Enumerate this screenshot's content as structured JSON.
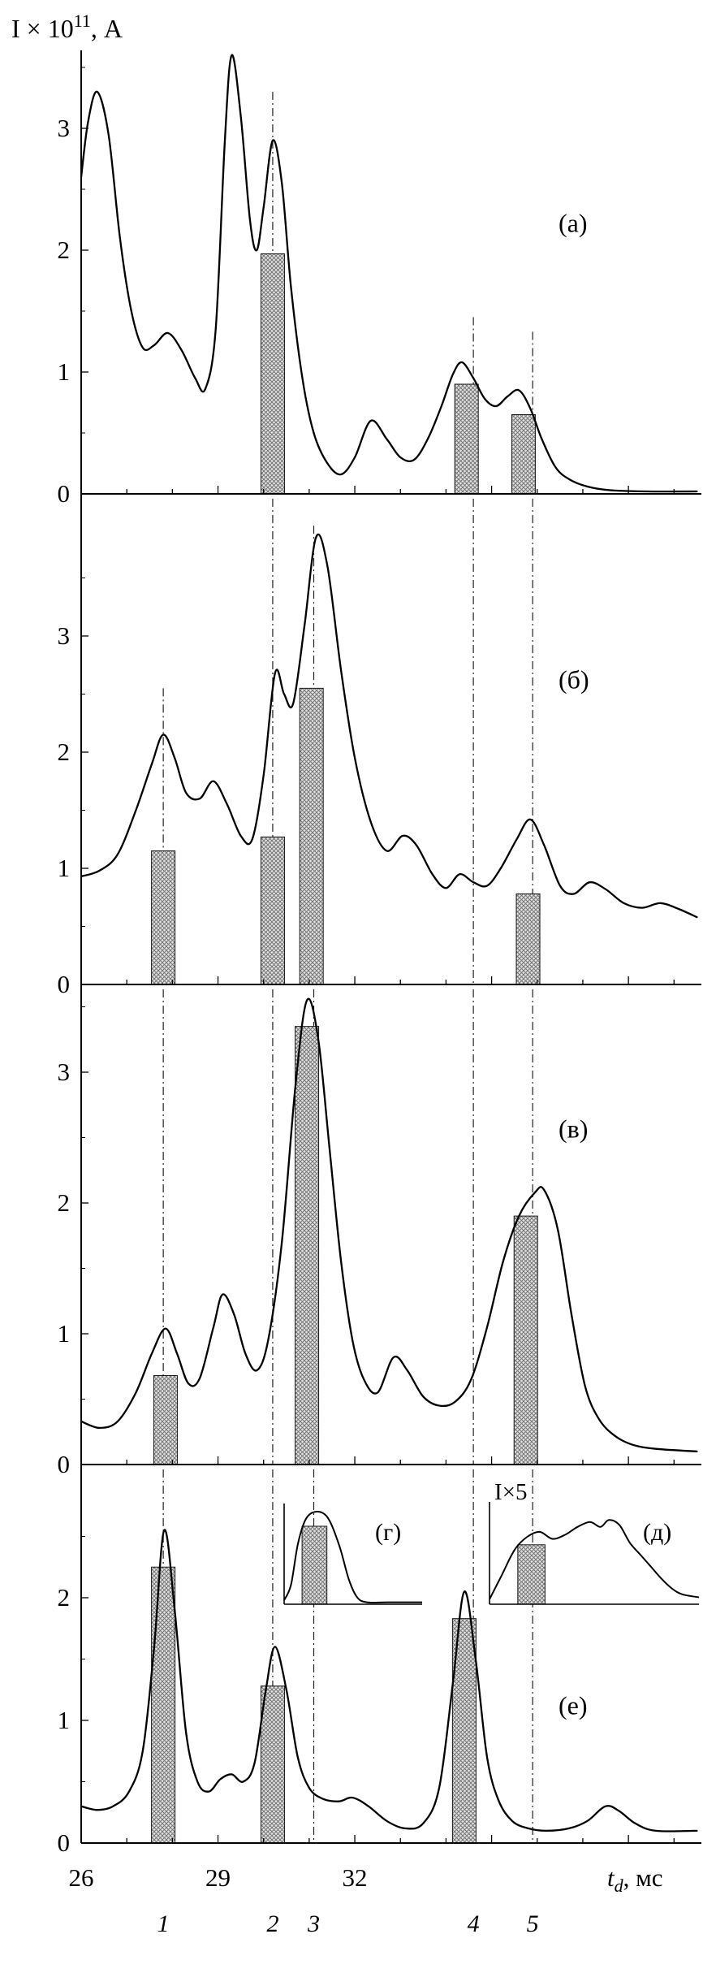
{
  "figure": {
    "y_axis_title": {
      "base": "I × 10",
      "sup": "11",
      "rest": ", А"
    },
    "x_axis_title": {
      "var": "t",
      "sub": "d",
      "rest": ", мс"
    }
  },
  "chart_data": {
    "type": "line",
    "x_range": [
      26,
      39.6
    ],
    "x_major_ticks": [
      26,
      29,
      32,
      35,
      38
    ],
    "x_tick_labels": [
      {
        "value": 26,
        "text": "26"
      },
      {
        "value": 29,
        "text": "29"
      },
      {
        "value": 32,
        "text": "32"
      }
    ],
    "guide_lines_x": [
      27.8,
      30.2,
      31.1,
      34.6,
      35.9
    ],
    "guide_labels": [
      "1",
      "2",
      "3",
      "4",
      "5"
    ],
    "panels": [
      {
        "id": "a",
        "label": "(а)",
        "y_ticks": [
          0,
          1,
          2,
          3
        ],
        "curve": [
          [
            26.0,
            2.6
          ],
          [
            26.15,
            3.05
          ],
          [
            26.35,
            3.3
          ],
          [
            26.6,
            2.95
          ],
          [
            26.85,
            2.1
          ],
          [
            27.1,
            1.5
          ],
          [
            27.35,
            1.2
          ],
          [
            27.6,
            1.22
          ],
          [
            27.9,
            1.32
          ],
          [
            28.2,
            1.18
          ],
          [
            28.5,
            0.95
          ],
          [
            28.72,
            0.86
          ],
          [
            28.95,
            1.35
          ],
          [
            29.15,
            2.9
          ],
          [
            29.3,
            3.6
          ],
          [
            29.5,
            3.1
          ],
          [
            29.7,
            2.25
          ],
          [
            29.85,
            2.0
          ],
          [
            30.0,
            2.35
          ],
          [
            30.2,
            2.9
          ],
          [
            30.4,
            2.55
          ],
          [
            30.6,
            1.7
          ],
          [
            30.85,
            0.95
          ],
          [
            31.1,
            0.5
          ],
          [
            31.4,
            0.25
          ],
          [
            31.7,
            0.16
          ],
          [
            32.0,
            0.3
          ],
          [
            32.35,
            0.6
          ],
          [
            32.7,
            0.45
          ],
          [
            33.0,
            0.3
          ],
          [
            33.3,
            0.28
          ],
          [
            33.6,
            0.45
          ],
          [
            33.9,
            0.72
          ],
          [
            34.15,
            0.98
          ],
          [
            34.35,
            1.08
          ],
          [
            34.6,
            0.95
          ],
          [
            34.85,
            0.78
          ],
          [
            35.1,
            0.72
          ],
          [
            35.35,
            0.8
          ],
          [
            35.6,
            0.85
          ],
          [
            35.85,
            0.7
          ],
          [
            36.1,
            0.45
          ],
          [
            36.4,
            0.22
          ],
          [
            36.7,
            0.12
          ],
          [
            37.1,
            0.06
          ],
          [
            37.6,
            0.03
          ],
          [
            38.4,
            0.02
          ],
          [
            39.5,
            0.02
          ]
        ],
        "bars": [
          {
            "x": 30.2,
            "h": 1.97
          },
          {
            "x": 34.45,
            "h": 0.9
          },
          {
            "x": 35.7,
            "h": 0.65
          }
        ],
        "guides": [
          {
            "x": 30.2,
            "from": 3.3
          },
          {
            "x": 34.6,
            "from": 1.45
          },
          {
            "x": 35.9,
            "from": 1.33
          }
        ]
      },
      {
        "id": "b",
        "label": "(б)",
        "y_ticks": [
          0,
          1,
          2,
          3
        ],
        "curve": [
          [
            26.0,
            0.93
          ],
          [
            26.4,
            0.98
          ],
          [
            26.8,
            1.12
          ],
          [
            27.2,
            1.5
          ],
          [
            27.55,
            1.9
          ],
          [
            27.8,
            2.15
          ],
          [
            28.05,
            1.95
          ],
          [
            28.3,
            1.65
          ],
          [
            28.6,
            1.6
          ],
          [
            28.9,
            1.75
          ],
          [
            29.2,
            1.55
          ],
          [
            29.5,
            1.28
          ],
          [
            29.75,
            1.25
          ],
          [
            30.0,
            1.8
          ],
          [
            30.25,
            2.68
          ],
          [
            30.45,
            2.5
          ],
          [
            30.65,
            2.42
          ],
          [
            30.9,
            3.1
          ],
          [
            31.15,
            3.85
          ],
          [
            31.4,
            3.6
          ],
          [
            31.7,
            2.7
          ],
          [
            32.0,
            1.95
          ],
          [
            32.35,
            1.4
          ],
          [
            32.7,
            1.15
          ],
          [
            33.05,
            1.28
          ],
          [
            33.35,
            1.2
          ],
          [
            33.7,
            0.95
          ],
          [
            34.0,
            0.83
          ],
          [
            34.3,
            0.95
          ],
          [
            34.6,
            0.88
          ],
          [
            34.9,
            0.85
          ],
          [
            35.2,
            1.0
          ],
          [
            35.55,
            1.25
          ],
          [
            35.85,
            1.42
          ],
          [
            36.15,
            1.2
          ],
          [
            36.5,
            0.85
          ],
          [
            36.8,
            0.78
          ],
          [
            37.15,
            0.88
          ],
          [
            37.5,
            0.82
          ],
          [
            37.9,
            0.7
          ],
          [
            38.3,
            0.66
          ],
          [
            38.7,
            0.7
          ],
          [
            39.1,
            0.65
          ],
          [
            39.5,
            0.58
          ]
        ],
        "bars": [
          {
            "x": 27.8,
            "h": 1.15
          },
          {
            "x": 30.2,
            "h": 1.27
          },
          {
            "x": 31.05,
            "h": 2.55
          },
          {
            "x": 35.8,
            "h": 0.78
          }
        ],
        "guides": [
          {
            "x": 27.8,
            "from": 2.55
          },
          {
            "x": 30.2,
            "from": "top"
          },
          {
            "x": 31.1,
            "from": 3.95
          },
          {
            "x": 34.6,
            "from": "top"
          },
          {
            "x": 35.9,
            "from": "top"
          }
        ]
      },
      {
        "id": "v",
        "label": "(в)",
        "y_ticks": [
          0,
          1,
          2,
          3
        ],
        "curve": [
          [
            26.0,
            0.33
          ],
          [
            26.4,
            0.28
          ],
          [
            26.8,
            0.33
          ],
          [
            27.2,
            0.55
          ],
          [
            27.55,
            0.85
          ],
          [
            27.85,
            1.04
          ],
          [
            28.1,
            0.85
          ],
          [
            28.35,
            0.62
          ],
          [
            28.6,
            0.66
          ],
          [
            28.9,
            1.05
          ],
          [
            29.1,
            1.3
          ],
          [
            29.35,
            1.15
          ],
          [
            29.6,
            0.85
          ],
          [
            29.85,
            0.72
          ],
          [
            30.1,
            0.95
          ],
          [
            30.4,
            1.7
          ],
          [
            30.7,
            2.9
          ],
          [
            30.95,
            3.55
          ],
          [
            31.2,
            3.25
          ],
          [
            31.45,
            2.4
          ],
          [
            31.7,
            1.55
          ],
          [
            31.95,
            0.95
          ],
          [
            32.2,
            0.65
          ],
          [
            32.5,
            0.55
          ],
          [
            32.85,
            0.82
          ],
          [
            33.15,
            0.72
          ],
          [
            33.5,
            0.52
          ],
          [
            33.85,
            0.45
          ],
          [
            34.2,
            0.48
          ],
          [
            34.55,
            0.65
          ],
          [
            34.9,
            1.05
          ],
          [
            35.25,
            1.55
          ],
          [
            35.6,
            1.9
          ],
          [
            35.95,
            2.08
          ],
          [
            36.15,
            2.1
          ],
          [
            36.45,
            1.8
          ],
          [
            36.75,
            1.15
          ],
          [
            37.05,
            0.6
          ],
          [
            37.35,
            0.35
          ],
          [
            37.7,
            0.22
          ],
          [
            38.1,
            0.15
          ],
          [
            38.6,
            0.12
          ],
          [
            39.5,
            0.1
          ]
        ],
        "bars": [
          {
            "x": 27.85,
            "h": 0.68
          },
          {
            "x": 30.95,
            "h": 3.35
          },
          {
            "x": 35.75,
            "h": 1.9
          }
        ],
        "guides": [
          {
            "x": 27.8,
            "from": "top"
          },
          {
            "x": 30.2,
            "from": "top"
          },
          {
            "x": 31.1,
            "from": "top"
          },
          {
            "x": 34.6,
            "from": "top"
          },
          {
            "x": 35.9,
            "from": "top"
          }
        ]
      },
      {
        "id": "e",
        "label": "(е)",
        "y_ticks": [
          0,
          1,
          2
        ],
        "curve": [
          [
            26.0,
            0.3
          ],
          [
            26.35,
            0.27
          ],
          [
            26.7,
            0.3
          ],
          [
            27.05,
            0.42
          ],
          [
            27.35,
            0.75
          ],
          [
            27.6,
            1.6
          ],
          [
            27.82,
            2.55
          ],
          [
            28.05,
            1.9
          ],
          [
            28.3,
            0.9
          ],
          [
            28.55,
            0.5
          ],
          [
            28.8,
            0.42
          ],
          [
            29.05,
            0.52
          ],
          [
            29.3,
            0.56
          ],
          [
            29.55,
            0.5
          ],
          [
            29.8,
            0.65
          ],
          [
            30.05,
            1.25
          ],
          [
            30.25,
            1.6
          ],
          [
            30.5,
            1.25
          ],
          [
            30.75,
            0.7
          ],
          [
            31.0,
            0.45
          ],
          [
            31.3,
            0.36
          ],
          [
            31.65,
            0.34
          ],
          [
            31.95,
            0.37
          ],
          [
            32.3,
            0.3
          ],
          [
            32.7,
            0.18
          ],
          [
            33.1,
            0.12
          ],
          [
            33.5,
            0.16
          ],
          [
            33.85,
            0.45
          ],
          [
            34.15,
            1.3
          ],
          [
            34.4,
            2.05
          ],
          [
            34.65,
            1.5
          ],
          [
            34.9,
            0.7
          ],
          [
            35.15,
            0.35
          ],
          [
            35.45,
            0.18
          ],
          [
            35.8,
            0.12
          ],
          [
            36.2,
            0.1
          ],
          [
            36.7,
            0.12
          ],
          [
            37.1,
            0.18
          ],
          [
            37.5,
            0.3
          ],
          [
            37.8,
            0.26
          ],
          [
            38.15,
            0.16
          ],
          [
            38.6,
            0.1
          ],
          [
            39.5,
            0.1
          ]
        ],
        "bars": [
          {
            "x": 27.8,
            "h": 2.25
          },
          {
            "x": 30.2,
            "h": 1.28
          },
          {
            "x": 34.4,
            "h": 1.83
          }
        ],
        "guides": [
          {
            "x": 27.8,
            "from": "top"
          },
          {
            "x": 30.2,
            "from": "top"
          },
          {
            "x": 31.1,
            "from": "top"
          },
          {
            "x": 34.6,
            "from": "top"
          },
          {
            "x": 35.9,
            "from": "top"
          }
        ]
      }
    ],
    "insets": [
      {
        "id": "g",
        "label": "(г)",
        "title": "",
        "curve": [
          [
            0.0,
            0.04
          ],
          [
            0.05,
            0.2
          ],
          [
            0.1,
            0.62
          ],
          [
            0.16,
            0.88
          ],
          [
            0.24,
            0.95
          ],
          [
            0.32,
            0.88
          ],
          [
            0.4,
            0.6
          ],
          [
            0.47,
            0.25
          ],
          [
            0.53,
            0.07
          ],
          [
            0.6,
            0.02
          ],
          [
            0.75,
            0.02
          ],
          [
            1.0,
            0.02
          ]
        ],
        "bar": {
          "x": 0.22,
          "w": 0.18,
          "h": 0.8
        }
      },
      {
        "id": "d",
        "label": "(д)",
        "title": "I×5",
        "curve": [
          [
            0.0,
            0.05
          ],
          [
            0.06,
            0.3
          ],
          [
            0.12,
            0.55
          ],
          [
            0.18,
            0.68
          ],
          [
            0.24,
            0.73
          ],
          [
            0.3,
            0.66
          ],
          [
            0.36,
            0.7
          ],
          [
            0.42,
            0.78
          ],
          [
            0.48,
            0.83
          ],
          [
            0.53,
            0.78
          ],
          [
            0.57,
            0.85
          ],
          [
            0.62,
            0.8
          ],
          [
            0.67,
            0.62
          ],
          [
            0.72,
            0.5
          ],
          [
            0.77,
            0.38
          ],
          [
            0.82,
            0.26
          ],
          [
            0.87,
            0.16
          ],
          [
            0.92,
            0.1
          ],
          [
            1.0,
            0.07
          ]
        ],
        "bar": {
          "x": 0.2,
          "w": 0.13,
          "h": 0.6
        }
      }
    ]
  }
}
